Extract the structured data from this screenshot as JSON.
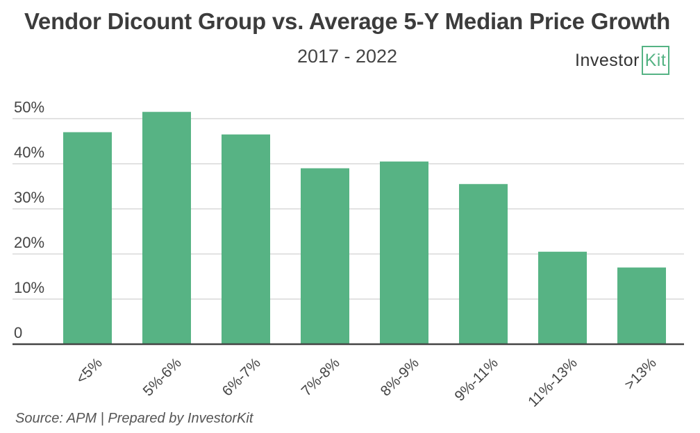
{
  "header": {
    "title": "Vendor Dicount Group vs. Average 5-Y Median Price Growth",
    "subtitle": "2017 - 2022"
  },
  "logo": {
    "text_main": "Investor",
    "text_box": "Kit",
    "icon": "investorkit-logo",
    "accent_color": "#55b384"
  },
  "footer": {
    "source": "Source: APM | Prepared by InvestorKit"
  },
  "chart_data": {
    "type": "bar",
    "title": "Vendor Dicount Group vs. Average 5-Y Median Price Growth",
    "subtitle": "2017 - 2022",
    "xlabel": "",
    "ylabel": "",
    "categories": [
      "<5%",
      "5%-6%",
      "6%-7%",
      "7%-8%",
      "8%-9%",
      "9%-11%",
      "11%-13%",
      ">13%"
    ],
    "values": [
      47,
      51.5,
      46.5,
      39,
      40.5,
      35.5,
      20.5,
      17
    ],
    "ylim": [
      0,
      50
    ],
    "yticks": [
      0,
      10,
      20,
      30,
      40,
      50
    ],
    "ytick_labels": [
      "0",
      "10%",
      "20%",
      "30%",
      "40%",
      "50%"
    ],
    "grid": true,
    "legend": "none",
    "bar_color": "#57b384",
    "grid_color": "#d9d9d9",
    "axis_color": "#444444"
  }
}
